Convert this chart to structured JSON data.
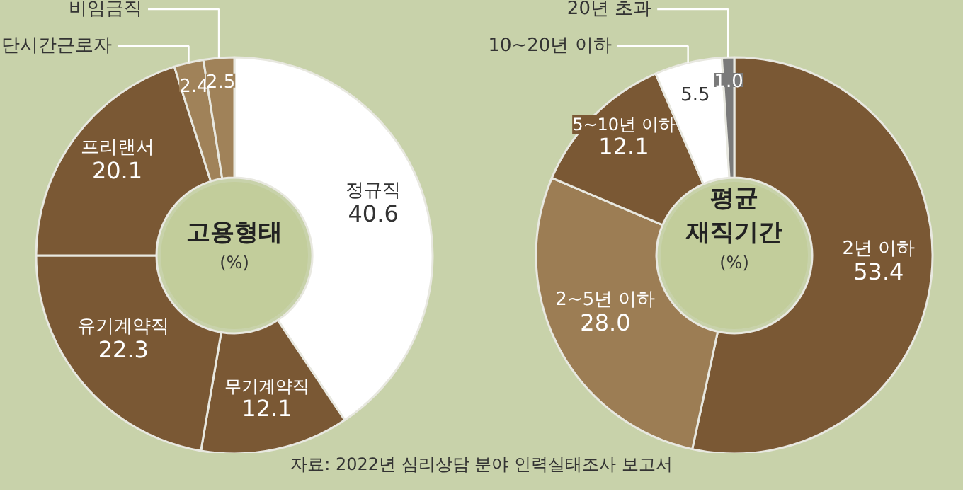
{
  "chart_data": [
    {
      "type": "donut",
      "title": "고용형태",
      "subtitle": "(%)",
      "categories": [
        "정규직",
        "무기계약직",
        "유기계약직",
        "프리랜서",
        "단시간근로자",
        "비임금직"
      ],
      "values": [
        40.6,
        12.1,
        22.3,
        20.1,
        2.4,
        2.5
      ],
      "colors": [
        "#ffffff",
        "#7a5834",
        "#7a5834",
        "#7a5834",
        "#a08259",
        "#a08259"
      ],
      "data_labels": true
    },
    {
      "type": "donut",
      "title": "평균 재직기간",
      "subtitle": "(%)",
      "categories": [
        "2년 이하",
        "2~5년 이하",
        "5~10년 이하",
        "10~20년 이하",
        "20년 초과"
      ],
      "values": [
        53.4,
        28.0,
        12.1,
        5.5,
        1.0
      ],
      "colors": [
        "#7a5834",
        "#9c7d54",
        "#7a5834",
        "#ffffff",
        "#7a7a7a"
      ],
      "value_labels": [
        "53.4",
        "28.0",
        "12.1",
        "5.5",
        "1.0"
      ],
      "annotations": [
        "자료: 2022년 심리상담 분야 인력실태조사 보고서"
      ]
    }
  ]
}
